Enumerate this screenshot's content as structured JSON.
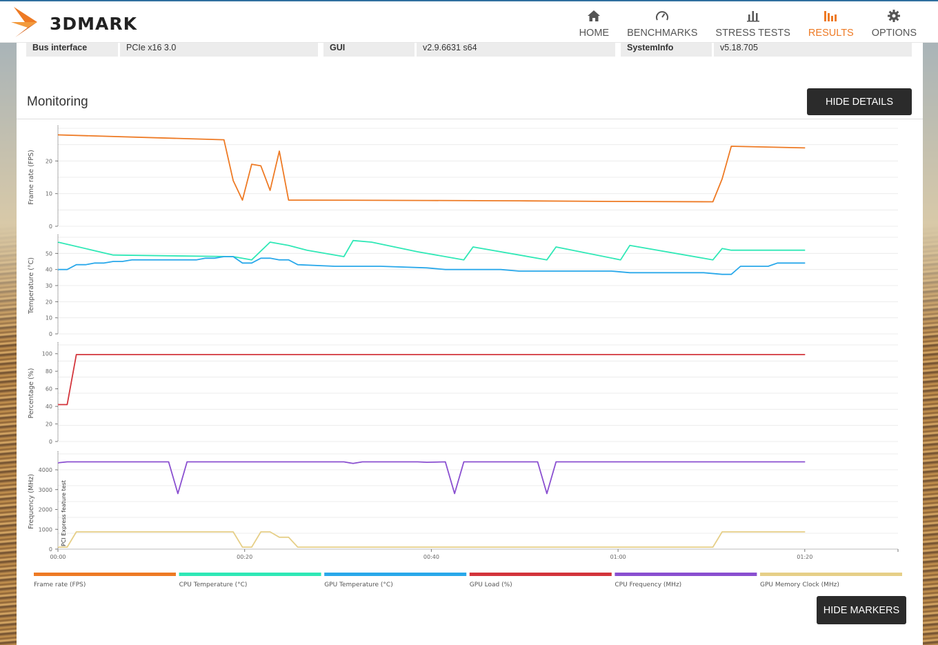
{
  "app": {
    "brand": "3DMARK"
  },
  "nav": {
    "items": [
      {
        "label": "HOME",
        "icon": "home-icon",
        "active": false
      },
      {
        "label": "BENCHMARKS",
        "icon": "gauge-icon",
        "active": false
      },
      {
        "label": "STRESS TESTS",
        "icon": "bar-chart-icon",
        "active": false
      },
      {
        "label": "RESULTS",
        "icon": "results-icon",
        "active": true
      },
      {
        "label": "OPTIONS",
        "icon": "gear-icon",
        "active": false
      }
    ],
    "active_color": "#ee7a24"
  },
  "info": {
    "bus_interface_label": "Bus interface",
    "bus_interface_value": "PCIe x16 3.0",
    "gui_label": "GUI",
    "gui_value": "v2.9.6631 s64",
    "systeminfo_label": "SystemInfo",
    "systeminfo_value": "v5.18.705"
  },
  "monitoring": {
    "title": "Monitoring",
    "hide_details_label": "HIDE DETAILS",
    "hide_markers_label": "HIDE MARKERS",
    "marker_label": "PCI Express feature test"
  },
  "chart_data": {
    "type": "line",
    "x_ticks": [
      "00:00",
      "00:20",
      "00:40",
      "01:00",
      "01:20"
    ],
    "x_range_seconds": [
      0,
      90
    ],
    "legend": [
      {
        "name": "Frame rate (FPS)",
        "color": "#ee7a24"
      },
      {
        "name": "CPU Temperature (°C)",
        "color": "#2fe8b6"
      },
      {
        "name": "GPU Temperature (°C)",
        "color": "#29a8ea"
      },
      {
        "name": "GPU Load (%)",
        "color": "#d3343b"
      },
      {
        "name": "CPU Frequency (MHz)",
        "color": "#8a4fd0"
      },
      {
        "name": "GPU Memory Clock (MHz)",
        "color": "#e6cf88"
      }
    ],
    "panels": [
      {
        "ylabel": "Frame rate (FPS)",
        "ylim": [
          0,
          30
        ],
        "yticks": [
          0,
          10,
          20
        ],
        "series": [
          {
            "name": "Frame rate (FPS)",
            "color": "#ee7a24",
            "x": [
              0,
              18,
              19,
              20,
              21,
              22,
              23,
              24,
              25,
              27,
              40,
              50,
              60,
              71,
              72,
              73,
              81
            ],
            "y": [
              28,
              26.5,
              14,
              8,
              19,
              18.5,
              11,
              23,
              8,
              8,
              7.9,
              7.8,
              7.6,
              7.5,
              14.5,
              24.5,
              24
            ]
          }
        ]
      },
      {
        "ylabel": "Temperature (°C)",
        "ylim": [
          0,
          60
        ],
        "yticks": [
          0,
          10,
          20,
          30,
          40,
          50
        ],
        "series": [
          {
            "name": "CPU Temperature (°C)",
            "color": "#2fe8b6",
            "x": [
              0,
              6,
              12,
              19,
              21,
              23,
              25,
              27,
              31,
              32,
              34,
              39,
              44,
              45,
              53,
              54,
              61,
              62,
              71,
              72,
              73,
              81
            ],
            "y": [
              57,
              49,
              48.5,
              48,
              46,
              57,
              55,
              52,
              48,
              58,
              57,
              51,
              46,
              54,
              46,
              54,
              46,
              55,
              46,
              53,
              52,
              52
            ]
          },
          {
            "name": "GPU Temperature (°C)",
            "color": "#29a8ea",
            "x": [
              0,
              1,
              2,
              3,
              4,
              5,
              6,
              7,
              8,
              9,
              10,
              15,
              16,
              17,
              18,
              19,
              20,
              21,
              22,
              23,
              24,
              25,
              26,
              30,
              35,
              40,
              42,
              48,
              50,
              55,
              60,
              62,
              70,
              72,
              73,
              74,
              77,
              78,
              79,
              81
            ],
            "y": [
              40,
              40,
              43,
              43,
              44,
              44,
              45,
              45,
              46,
              46,
              46,
              46,
              47,
              47,
              48,
              48,
              44,
              44,
              47,
              47,
              46,
              46,
              43,
              42,
              42,
              41,
              40,
              40,
              39,
              39,
              39,
              38,
              38,
              37,
              37,
              42,
              42,
              44,
              44,
              44
            ]
          }
        ]
      },
      {
        "ylabel": "Percentage (%)",
        "ylim": [
          0,
          110
        ],
        "yticks": [
          0,
          20,
          40,
          60,
          80,
          100
        ],
        "series": [
          {
            "name": "GPU Load (%)",
            "color": "#d3343b",
            "x": [
              0,
              1,
              2,
              81
            ],
            "y": [
              42,
              42,
              99,
              99
            ]
          }
        ]
      },
      {
        "ylabel": "Frequency (MHz)",
        "ylim": [
          0,
          4800
        ],
        "yticks": [
          0,
          1000,
          2000,
          3000,
          4000
        ],
        "series": [
          {
            "name": "CPU Frequency (MHz)",
            "color": "#8a4fd0",
            "x": [
              0,
              1,
              12,
              13,
              14,
              20,
              31,
              32,
              33,
              39,
              40,
              42,
              43,
              44,
              52,
              53,
              54,
              81
            ],
            "y": [
              4350,
              4400,
              4400,
              2800,
              4400,
              4400,
              4400,
              4320,
              4400,
              4400,
              4380,
              4400,
              2800,
              4400,
              4400,
              2800,
              4400,
              4400
            ]
          },
          {
            "name": "GPU Memory Clock (MHz)",
            "color": "#e6cf88",
            "x": [
              0,
              1,
              2,
              19,
              20,
              21,
              22,
              23,
              24,
              25,
              26,
              40,
              71,
              72,
              81
            ],
            "y": [
              100,
              100,
              870,
              870,
              100,
              100,
              870,
              870,
              600,
              600,
              100,
              100,
              100,
              870,
              870
            ]
          }
        ]
      }
    ]
  }
}
